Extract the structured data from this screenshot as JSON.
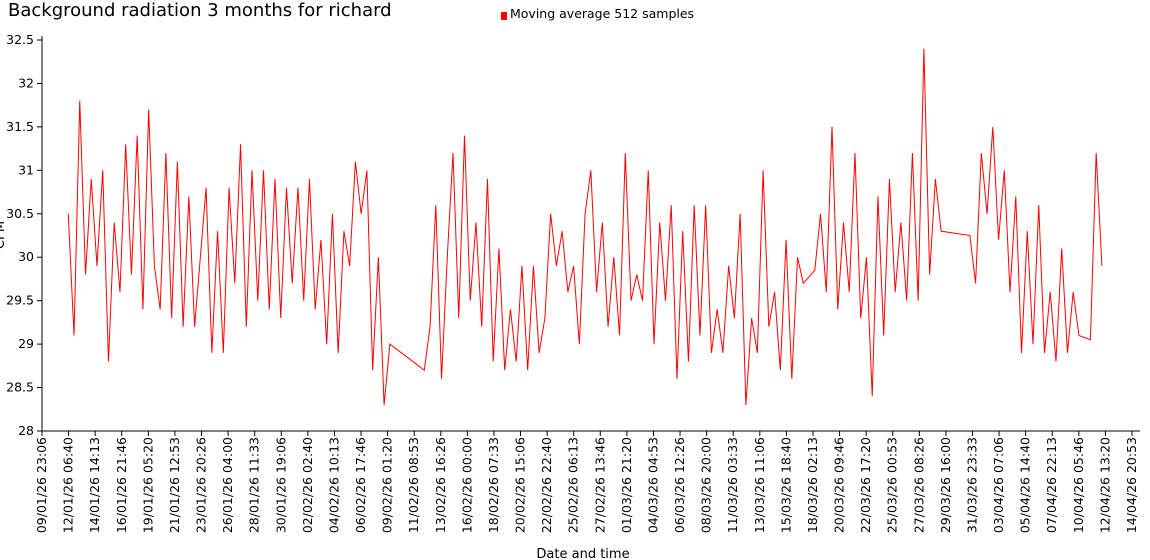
{
  "chart_data": {
    "type": "line",
    "title": "Background radiation 3 months for richard",
    "x_label": "Date and time",
    "y_label": "CPM",
    "x": [
      "12/01/26 06:00",
      "12/01/26 18:00",
      "13/01/26 06:00",
      "13/01/26 18:00",
      "14/01/26 06:00",
      "14/01/26 18:00",
      "15/01/26 06:00",
      "15/01/26 18:00",
      "16/01/26 06:00",
      "16/01/26 18:00",
      "17/01/26 06:00",
      "17/01/26 18:00",
      "18/01/26 06:00",
      "18/01/26 18:00",
      "19/01/26 06:00",
      "19/01/26 18:00",
      "20/01/26 06:00",
      "20/01/26 18:00",
      "21/01/26 06:00",
      "21/01/26 18:00",
      "22/01/26 06:00",
      "22/01/26 18:00",
      "23/01/26 06:00",
      "23/01/26 18:00",
      "24/01/26 06:00",
      "24/01/26 18:00",
      "25/01/26 06:00",
      "25/01/26 18:00",
      "26/01/26 06:00",
      "26/01/26 18:00",
      "27/01/26 06:00",
      "27/01/26 18:00",
      "28/01/26 06:00",
      "28/01/26 18:00",
      "29/01/26 06:00",
      "29/01/26 18:00",
      "30/01/26 06:00",
      "30/01/26 18:00",
      "31/01/26 06:00",
      "31/01/26 18:00",
      "01/02/26 06:00",
      "01/02/26 18:00",
      "02/02/26 06:00",
      "02/02/26 18:00",
      "03/02/26 06:00",
      "03/02/26 18:00",
      "04/02/26 06:00",
      "04/02/26 18:00",
      "05/02/26 06:00",
      "05/02/26 18:00",
      "06/02/26 06:00",
      "06/02/26 18:00",
      "07/02/26 06:00",
      "07/02/26 18:00",
      "08/02/26 06:00",
      "08/02/26 18:00",
      "09/02/26 06:00",
      "12/02/26 06:00",
      "12/02/26 18:00",
      "13/02/26 06:00",
      "13/02/26 18:00",
      "14/02/26 06:00",
      "14/02/26 18:00",
      "15/02/26 06:00",
      "15/02/26 18:00",
      "16/02/26 06:00",
      "16/02/26 18:00",
      "17/02/26 06:00",
      "17/02/26 18:00",
      "18/02/26 06:00",
      "18/02/26 18:00",
      "19/02/26 06:00",
      "19/02/26 18:00",
      "20/02/26 06:00",
      "20/02/26 18:00",
      "21/02/26 06:00",
      "21/02/26 18:00",
      "22/02/26 06:00",
      "22/02/26 18:00",
      "23/02/26 06:00",
      "23/02/26 18:00",
      "24/02/26 06:00",
      "24/02/26 18:00",
      "25/02/26 06:00",
      "25/02/26 18:00",
      "26/02/26 06:00",
      "26/02/26 18:00",
      "27/02/26 06:00",
      "27/02/26 18:00",
      "28/02/26 06:00",
      "28/02/26 18:00",
      "01/03/26 06:00",
      "01/03/26 18:00",
      "02/03/26 06:00",
      "02/03/26 18:00",
      "03/03/26 06:00",
      "03/03/26 18:00",
      "04/03/26 06:00",
      "04/03/26 18:00",
      "05/03/26 06:00",
      "05/03/26 18:00",
      "06/03/26 06:00",
      "06/03/26 18:00",
      "07/03/26 06:00",
      "07/03/26 18:00",
      "08/03/26 06:00",
      "08/03/26 18:00",
      "09/03/26 06:00",
      "09/03/26 18:00",
      "10/03/26 06:00",
      "10/03/26 18:00",
      "11/03/26 06:00",
      "11/03/26 18:00",
      "12/03/26 06:00",
      "12/03/26 18:00",
      "13/03/26 06:00",
      "13/03/26 18:00",
      "14/03/26 06:00",
      "14/03/26 18:00",
      "15/03/26 06:00",
      "15/03/26 18:00",
      "16/03/26 06:00",
      "16/03/26 18:00",
      "17/03/26 06:00",
      "18/03/26 06:00",
      "18/03/26 18:00",
      "19/03/26 06:00",
      "19/03/26 18:00",
      "20/03/26 06:00",
      "20/03/26 18:00",
      "21/03/26 06:00",
      "21/03/26 18:00",
      "22/03/26 06:00",
      "22/03/26 18:00",
      "23/03/26 06:00",
      "23/03/26 18:00",
      "24/03/26 06:00",
      "24/03/26 18:00",
      "25/03/26 06:00",
      "25/03/26 18:00",
      "26/03/26 06:00",
      "26/03/26 18:00",
      "27/03/26 06:00",
      "27/03/26 18:00",
      "28/03/26 06:00",
      "28/03/26 18:00",
      "29/03/26 06:00",
      "31/03/26 18:00",
      "01/04/26 06:00",
      "01/04/26 18:00",
      "02/04/26 06:00",
      "02/04/26 18:00",
      "03/04/26 06:00",
      "03/04/26 18:00",
      "04/04/26 06:00",
      "04/04/26 18:00",
      "05/04/26 06:00",
      "05/04/26 18:00",
      "06/04/26 06:00",
      "06/04/26 18:00",
      "07/04/26 06:00",
      "07/04/26 18:00",
      "08/04/26 06:00",
      "08/04/26 18:00",
      "09/04/26 06:00",
      "09/04/26 18:00",
      "10/04/26 06:00",
      "11/04/26 06:00",
      "11/04/26 18:00",
      "12/04/26 06:00"
    ],
    "series": [
      {
        "name": "Moving average 512 samples",
        "color": "#ff0000",
        "values": [
          30.5,
          29.1,
          31.8,
          29.8,
          30.9,
          29.9,
          31.0,
          28.8,
          30.4,
          29.6,
          31.3,
          29.8,
          31.4,
          29.4,
          31.7,
          29.9,
          29.4,
          31.2,
          29.3,
          31.1,
          29.2,
          30.7,
          29.2,
          30.0,
          30.8,
          28.9,
          30.3,
          28.9,
          30.8,
          29.7,
          31.3,
          29.2,
          31.0,
          29.5,
          31.0,
          29.4,
          30.9,
          29.3,
          30.8,
          29.7,
          30.8,
          29.5,
          30.9,
          29.4,
          30.2,
          29.0,
          30.5,
          28.9,
          30.3,
          29.9,
          31.1,
          30.5,
          31.0,
          28.7,
          30.0,
          28.3,
          29.0,
          28.7,
          29.2,
          30.6,
          28.6,
          30.0,
          31.2,
          29.3,
          31.4,
          29.5,
          30.4,
          29.2,
          30.9,
          28.8,
          30.1,
          28.7,
          29.4,
          28.8,
          29.9,
          28.7,
          29.9,
          28.9,
          29.3,
          30.5,
          29.9,
          30.3,
          29.6,
          29.9,
          29.0,
          30.5,
          31.0,
          29.6,
          30.4,
          29.2,
          30.0,
          29.1,
          31.2,
          29.5,
          29.8,
          29.5,
          31.0,
          29.0,
          30.4,
          29.5,
          30.6,
          28.6,
          30.3,
          28.8,
          30.6,
          29.1,
          30.6,
          28.9,
          29.4,
          28.9,
          29.9,
          29.3,
          30.5,
          28.3,
          29.3,
          28.9,
          31.0,
          29.2,
          29.6,
          28.7,
          30.2,
          28.6,
          30.0,
          29.7,
          29.85,
          30.5,
          29.6,
          31.5,
          29.4,
          30.4,
          29.6,
          31.2,
          29.3,
          30.0,
          28.4,
          30.7,
          29.1,
          30.9,
          29.6,
          30.4,
          29.5,
          31.2,
          29.5,
          32.4,
          29.8,
          30.9,
          30.3,
          30.25,
          29.7,
          31.2,
          30.5,
          31.5,
          30.2,
          31.0,
          29.6,
          30.7,
          28.9,
          30.3,
          29.0,
          30.6,
          28.9,
          29.6,
          28.8,
          30.1,
          28.9,
          29.6,
          29.1,
          29.05,
          31.2,
          29.9
        ]
      }
    ],
    "xlim": [
      "09/01/26 23:06",
      "14/04/26 20:53"
    ],
    "xticks": [
      "09/01/26 23:06",
      "12/01/26 06:40",
      "14/01/26 14:13",
      "16/01/26 21:46",
      "19/01/26 05:20",
      "21/01/26 12:53",
      "23/01/26 20:26",
      "26/01/26 04:00",
      "28/01/26 11:33",
      "30/01/26 19:06",
      "02/02/26 02:40",
      "04/02/26 10:13",
      "06/02/26 17:46",
      "09/02/26 01:20",
      "11/02/26 08:53",
      "13/02/26 16:26",
      "16/02/26 00:00",
      "18/02/26 07:33",
      "20/02/26 15:06",
      "22/02/26 22:40",
      "25/02/26 06:13",
      "27/02/26 13:46",
      "01/03/26 21:20",
      "04/03/26 04:53",
      "06/03/26 12:26",
      "08/03/26 20:00",
      "11/03/26 03:33",
      "13/03/26 11:06",
      "15/03/26 18:40",
      "18/03/26 02:13",
      "20/03/26 09:46",
      "22/03/26 17:20",
      "25/03/26 00:53",
      "27/03/26 08:26",
      "29/03/26 16:00",
      "31/03/26 23:33",
      "03/04/26 07:06",
      "05/04/26 14:40",
      "07/04/26 22:13",
      "10/04/26 05:46",
      "12/04/26 13:20",
      "14/04/26 20:53"
    ],
    "ylim": [
      28,
      32.5
    ],
    "yticks": [
      28,
      28.5,
      29,
      29.5,
      30,
      30.5,
      31,
      31.5,
      32,
      32.5
    ],
    "grid": false,
    "legend": "top"
  }
}
